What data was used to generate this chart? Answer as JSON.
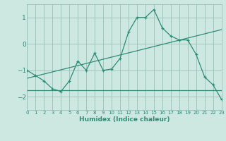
{
  "xlabel": "Humidex (Indice chaleur)",
  "x_values": [
    0,
    1,
    2,
    3,
    4,
    5,
    6,
    7,
    8,
    9,
    10,
    11,
    12,
    13,
    14,
    15,
    16,
    17,
    18,
    19,
    20,
    21,
    22,
    23
  ],
  "y_main": [
    -1.0,
    -1.2,
    -1.4,
    -1.7,
    -1.8,
    -1.4,
    -0.65,
    -1.0,
    -0.35,
    -1.0,
    -0.95,
    -0.55,
    0.45,
    1.0,
    1.0,
    1.3,
    0.6,
    0.3,
    0.15,
    0.15,
    -0.4,
    -1.25,
    -1.55,
    -2.1
  ],
  "y_reg_flat": [
    -1.75,
    -1.75,
    -1.75,
    -1.75,
    -1.75,
    -1.75,
    -1.75,
    -1.75,
    -1.75,
    -1.75,
    -1.75,
    -1.75,
    -1.75,
    -1.75,
    -1.75,
    -1.75,
    -1.75,
    -1.75,
    -1.75,
    -1.75,
    -1.75,
    -1.75,
    -1.75,
    -1.75
  ],
  "y_reg_slope": [
    -1.3,
    -1.22,
    -1.14,
    -1.06,
    -0.98,
    -0.9,
    -0.82,
    -0.74,
    -0.66,
    -0.58,
    -0.5,
    -0.42,
    -0.34,
    -0.26,
    -0.18,
    -0.1,
    -0.02,
    0.06,
    0.14,
    0.22,
    0.3,
    0.38,
    0.46,
    0.54
  ],
  "line_color": "#2e8b74",
  "bg_color": "#cce8e0",
  "grid_color": "#9bbfb5",
  "xlim": [
    0,
    23
  ],
  "ylim": [
    -2.5,
    1.5
  ],
  "yticks": [
    -2,
    -1,
    0,
    1
  ],
  "xticks": [
    0,
    1,
    2,
    3,
    4,
    5,
    6,
    7,
    8,
    9,
    10,
    11,
    12,
    13,
    14,
    15,
    16,
    17,
    18,
    19,
    20,
    21,
    22,
    23
  ]
}
